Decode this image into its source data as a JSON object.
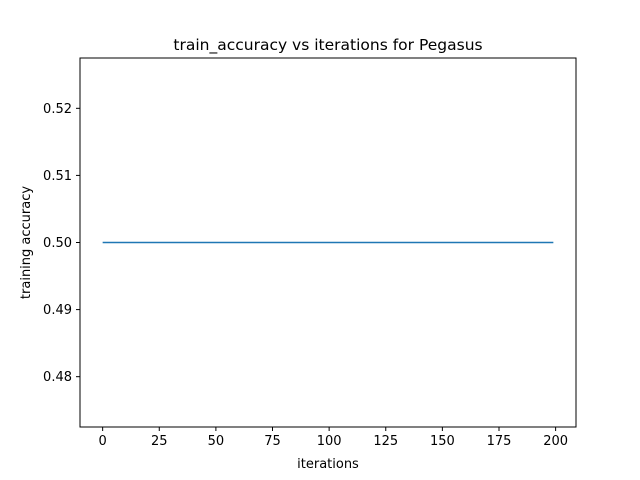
{
  "chart_data": {
    "type": "line",
    "title": "train_accuracy vs iterations for Pegasus",
    "xlabel": "iterations",
    "ylabel": "training accuracy",
    "xlim": [
      -10,
      209
    ],
    "ylim": [
      0.4725,
      0.5275
    ],
    "x_ticks": [
      0,
      25,
      50,
      75,
      100,
      125,
      150,
      175,
      200
    ],
    "y_ticks": [
      0.48,
      0.49,
      0.5,
      0.51,
      0.52
    ],
    "y_tick_labels": [
      "0.48",
      "0.49",
      "0.50",
      "0.51",
      "0.52"
    ],
    "grid": false,
    "series": [
      {
        "color": "#1f77b4",
        "x": [
          0,
          199
        ],
        "y": [
          0.5,
          0.5
        ]
      }
    ]
  }
}
